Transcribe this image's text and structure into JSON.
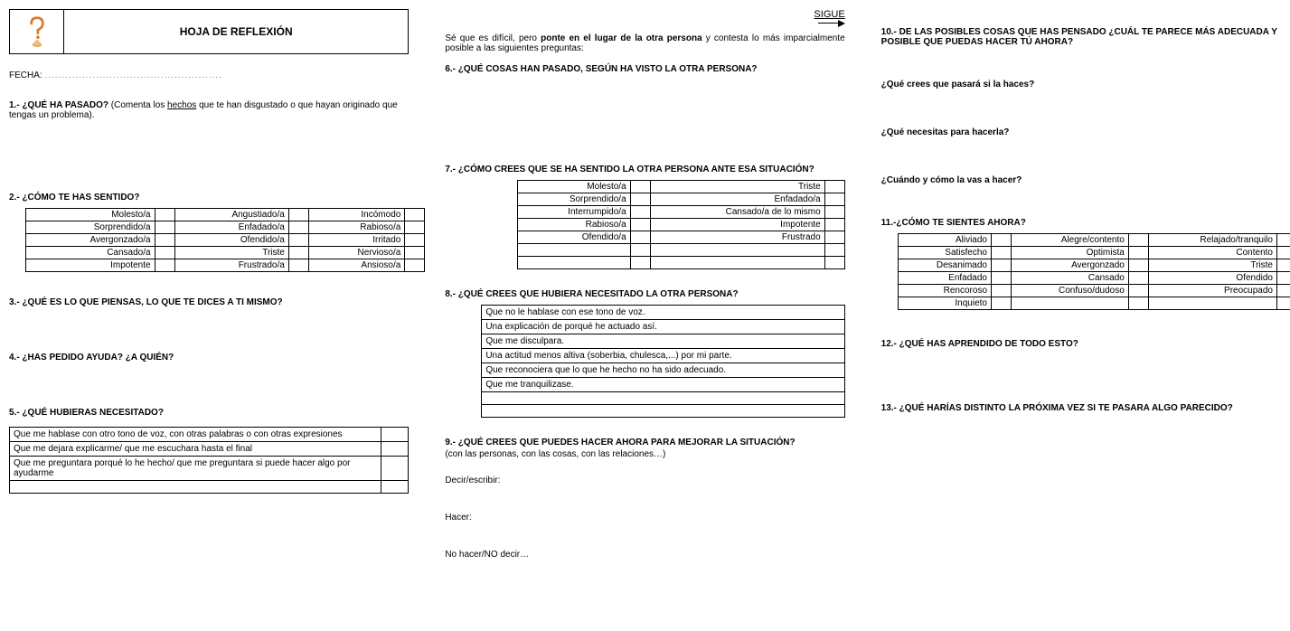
{
  "header": {
    "title": "HOJA DE REFLEXIÓN",
    "fecha_label": "FECHA:",
    "fecha_dots": "...................................................."
  },
  "sigue": "SIGUE",
  "col1": {
    "q1": {
      "num": "1.-",
      "title": "¿QUÉ HA PASADO?",
      "note_pre": " (Comenta los ",
      "note_ul": "hechos",
      "note_post": " que te han disgustado o que hayan originado que tengas un problema)."
    },
    "q2": {
      "title": "2.- ¿CÓMO TE HAS SENTIDO?",
      "rows": [
        [
          "Molesto/a",
          "Angustiado/a",
          "Incómodo"
        ],
        [
          "Sorprendido/a",
          "Enfadado/a",
          "Rabioso/a"
        ],
        [
          "Avergonzado/a",
          "Ofendido/a",
          "Irritado"
        ],
        [
          "Cansado/a",
          "Triste",
          "Nervioso/a"
        ],
        [
          "Impotente",
          "Frustrado/a",
          "Ansioso/a"
        ]
      ]
    },
    "q3": "3.- ¿QUÉ ES LO QUE PIENSAS, LO QUE TE DICES A TI MISMO?",
    "q4": "4.- ¿HAS PEDIDO AYUDA? ¿A QUIÉN?",
    "q5": {
      "title": "5.- ¿QUÉ HUBIERAS NECESITADO?",
      "items": [
        "Que me hablase con otro tono de voz, con otras palabras o con otras expresiones",
        "Que me dejara explicarme/ que me escuchara hasta el final",
        "Que me preguntara porqué lo he hecho/ que me preguntara si puede hacer algo por ayudarme",
        ""
      ]
    }
  },
  "col2": {
    "intro_pre": "Sé que es difícil, pero ",
    "intro_bold": "ponte en el lugar de la otra persona",
    "intro_post": " y contesta lo más imparcialmente posible a las siguientes preguntas:",
    "q6": "6.- ¿QUÉ COSAS HAN PASADO, SEGÚN HA VISTO LA OTRA PERSONA?",
    "q7": {
      "title": "7.- ¿CÓMO CREES QUE SE HA SENTIDO LA OTRA PERSONA ANTE ESA SITUACIÓN?",
      "rows": [
        [
          "Molesto/a",
          "Triste"
        ],
        [
          "Sorprendido/a",
          "Enfadado/a"
        ],
        [
          "Interrumpido/a",
          "Cansado/a de lo mismo"
        ],
        [
          "Rabioso/a",
          "Impotente"
        ],
        [
          "Ofendido/a",
          "Frustrado"
        ],
        [
          "",
          ""
        ],
        [
          "",
          ""
        ]
      ]
    },
    "q8": {
      "title": "8.- ¿QUÉ CREES QUE HUBIERA NECESITADO LA OTRA PERSONA?",
      "items": [
        "Que no le hablase con ese tono de voz.",
        "Una explicación de porqué  he actuado así.",
        "Que me disculpara.",
        "Una actitud menos altiva (soberbia, chulesca,...) por mi parte.",
        "Que reconociera que lo que he hecho no ha sido adecuado.",
        "Que me tranquilizase.",
        "",
        ""
      ]
    },
    "q9": {
      "title": "9.- ¿QUÉ CREES QUE PUEDES HACER AHORA PARA MEJORAR LA SITUACIÓN?",
      "sub": "(con las personas, con las cosas, con las relaciones…)",
      "a": "Decir/escribir:",
      "b": "Hacer:",
      "c": "No hacer/NO decir…"
    }
  },
  "col3": {
    "q10": {
      "title": "10.- DE LAS POSIBLES COSAS QUE HAS PENSADO ¿CUÁL TE PARECE MÁS ADECUADA Y POSIBLE QUE PUEDAS HACER TÚ AHORA?",
      "a": "¿Qué crees que pasará si la haces?",
      "b": "¿Qué necesitas para hacerla?",
      "c": "¿Cuándo y cómo la vas a hacer?"
    },
    "q11": {
      "title": "11.-¿CÓMO TE SIENTES AHORA?",
      "rows": [
        [
          "Aliviado",
          "Alegre/contento",
          "Relajado/tranquilo"
        ],
        [
          "Satisfecho",
          "Optimista",
          "Contento"
        ],
        [
          "Desanimado",
          "Avergonzado",
          "Triste"
        ],
        [
          "Enfadado",
          "Cansado",
          "Ofendido"
        ],
        [
          "Rencoroso",
          "Confuso/dudoso",
          "Preocupado"
        ],
        [
          "Inquieto",
          "",
          ""
        ]
      ]
    },
    "q12": "12.- ¿QUÉ HAS APRENDIDO DE TODO ESTO?",
    "q13": "13.- ¿QUÉ HARÍAS DISTINTO LA PRÓXIMA VEZ SI TE PASARA ALGO PARECIDO?"
  }
}
